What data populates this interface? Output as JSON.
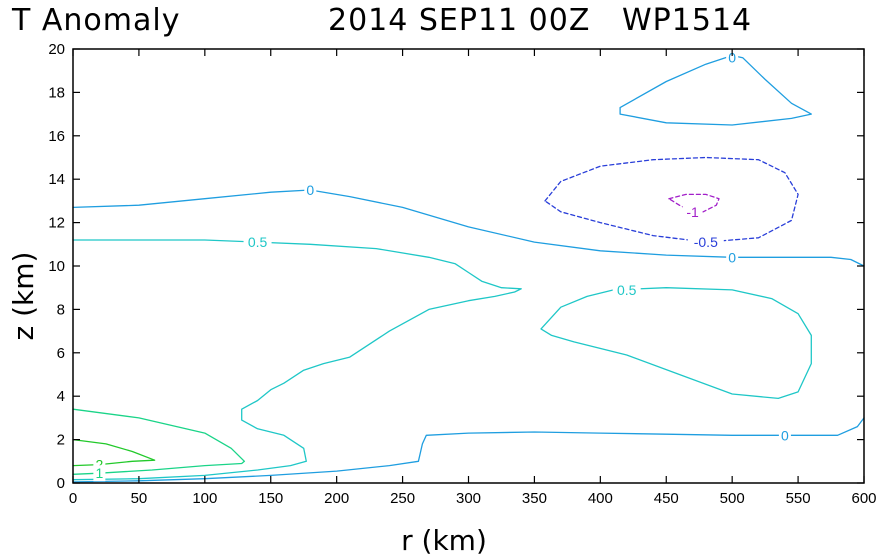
{
  "chart_data": {
    "type": "contour",
    "title_left": "T Anomaly",
    "title_right": "2014 SEP11 00Z   WP1514",
    "xlabel": "r (km)",
    "ylabel": "z (km)",
    "xlim": [
      0,
      600
    ],
    "ylim": [
      0,
      20
    ],
    "x_ticks": [
      0,
      50,
      100,
      150,
      200,
      250,
      300,
      350,
      400,
      450,
      500,
      550,
      600
    ],
    "y_ticks": [
      0,
      2,
      4,
      6,
      8,
      10,
      12,
      14,
      16,
      18,
      20
    ],
    "grid": false,
    "colors": {
      "0": "#1f9ee0",
      "0.5": "#1fc7c7",
      "1": "#1ad488",
      "2": "#22c92a",
      "-0.5": "#2a3fd9",
      "-1": "#a21fc9"
    },
    "contours": [
      {
        "level": "0",
        "color": "#1f9ee0",
        "dashed": false,
        "points": [
          [
            0,
            12.7
          ],
          [
            50,
            12.8
          ],
          [
            100,
            13.1
          ],
          [
            150,
            13.4
          ],
          [
            180,
            13.5
          ],
          [
            210,
            13.2
          ],
          [
            250,
            12.7
          ],
          [
            300,
            11.8
          ],
          [
            350,
            11.1
          ],
          [
            400,
            10.7
          ],
          [
            450,
            10.5
          ],
          [
            500,
            10.4
          ],
          [
            550,
            10.4
          ],
          [
            575,
            10.4
          ],
          [
            590,
            10.3
          ],
          [
            600,
            10.0
          ]
        ]
      },
      {
        "level": "0",
        "color": "#1f9ee0",
        "dashed": false,
        "points": [
          [
            0,
            0.05
          ],
          [
            50,
            0.1
          ],
          [
            100,
            0.2
          ],
          [
            150,
            0.35
          ],
          [
            200,
            0.55
          ],
          [
            240,
            0.8
          ],
          [
            262,
            1.0
          ],
          [
            265,
            1.8
          ],
          [
            268,
            2.2
          ],
          [
            300,
            2.3
          ],
          [
            350,
            2.35
          ],
          [
            400,
            2.3
          ],
          [
            450,
            2.25
          ],
          [
            500,
            2.2
          ],
          [
            540,
            2.2
          ],
          [
            580,
            2.2
          ],
          [
            595,
            2.6
          ],
          [
            600,
            3.0
          ]
        ]
      },
      {
        "level": "0",
        "color": "#1f9ee0",
        "dashed": false,
        "closed": true,
        "points": [
          [
            415,
            17.3
          ],
          [
            450,
            18.5
          ],
          [
            480,
            19.3
          ],
          [
            500,
            19.7
          ],
          [
            508,
            19.6
          ],
          [
            525,
            18.6
          ],
          [
            545,
            17.5
          ],
          [
            560,
            17.0
          ],
          [
            545,
            16.8
          ],
          [
            500,
            16.5
          ],
          [
            450,
            16.6
          ],
          [
            415,
            17.0
          ]
        ]
      },
      {
        "level": "0.5",
        "color": "#1fc7c7",
        "dashed": false,
        "points": [
          [
            0,
            11.2
          ],
          [
            50,
            11.2
          ],
          [
            100,
            11.2
          ],
          [
            140,
            11.1
          ],
          [
            180,
            11.0
          ],
          [
            230,
            10.8
          ],
          [
            270,
            10.4
          ],
          [
            290,
            10.1
          ],
          [
            300,
            9.7
          ],
          [
            310,
            9.3
          ],
          [
            325,
            9.0
          ],
          [
            340,
            8.95
          ],
          [
            335,
            8.8
          ],
          [
            320,
            8.6
          ],
          [
            300,
            8.4
          ],
          [
            270,
            8.0
          ],
          [
            240,
            7.0
          ],
          [
            210,
            5.8
          ],
          [
            190,
            5.5
          ],
          [
            175,
            5.2
          ],
          [
            160,
            4.6
          ],
          [
            150,
            4.3
          ],
          [
            140,
            3.8
          ],
          [
            128,
            3.4
          ],
          [
            128,
            2.9
          ],
          [
            140,
            2.5
          ],
          [
            160,
            2.2
          ],
          [
            175,
            1.6
          ],
          [
            177,
            1.0
          ],
          [
            165,
            0.8
          ],
          [
            140,
            0.6
          ],
          [
            100,
            0.35
          ],
          [
            50,
            0.2
          ],
          [
            0,
            0.15
          ]
        ]
      },
      {
        "level": "0.5",
        "color": "#1fc7c7",
        "dashed": false,
        "closed": true,
        "points": [
          [
            355,
            7.1
          ],
          [
            370,
            8.1
          ],
          [
            390,
            8.6
          ],
          [
            410,
            8.9
          ],
          [
            450,
            9.0
          ],
          [
            500,
            8.9
          ],
          [
            530,
            8.5
          ],
          [
            550,
            7.8
          ],
          [
            560,
            6.8
          ],
          [
            560,
            5.5
          ],
          [
            550,
            4.2
          ],
          [
            535,
            3.9
          ],
          [
            500,
            4.1
          ],
          [
            460,
            5.0
          ],
          [
            420,
            5.9
          ],
          [
            380,
            6.5
          ],
          [
            363,
            6.8
          ]
        ]
      },
      {
        "level": "1",
        "color": "#1ad488",
        "dashed": false,
        "points": [
          [
            0,
            3.4
          ],
          [
            50,
            3.0
          ],
          [
            100,
            2.3
          ],
          [
            120,
            1.6
          ],
          [
            130,
            1.0
          ],
          [
            128,
            0.9
          ],
          [
            100,
            0.8
          ],
          [
            60,
            0.6
          ],
          [
            20,
            0.45
          ],
          [
            0,
            0.4
          ]
        ]
      },
      {
        "level": "2",
        "color": "#22c92a",
        "dashed": false,
        "points": [
          [
            0,
            2.0
          ],
          [
            25,
            1.8
          ],
          [
            45,
            1.45
          ],
          [
            62,
            1.05
          ],
          [
            45,
            1.0
          ],
          [
            20,
            0.85
          ],
          [
            0,
            0.8
          ]
        ]
      },
      {
        "level": "-0.5",
        "color": "#2a3fd9",
        "dashed": true,
        "closed": true,
        "points": [
          [
            358,
            13.0
          ],
          [
            370,
            13.9
          ],
          [
            400,
            14.6
          ],
          [
            440,
            14.9
          ],
          [
            480,
            15.0
          ],
          [
            520,
            14.9
          ],
          [
            540,
            14.3
          ],
          [
            550,
            13.3
          ],
          [
            545,
            12.1
          ],
          [
            520,
            11.3
          ],
          [
            480,
            11.1
          ],
          [
            440,
            11.4
          ],
          [
            400,
            12.0
          ],
          [
            370,
            12.5
          ]
        ]
      },
      {
        "level": "-1",
        "color": "#a21fc9",
        "dashed": true,
        "closed": true,
        "points": [
          [
            452,
            13.1
          ],
          [
            465,
            13.3
          ],
          [
            480,
            13.3
          ],
          [
            490,
            13.1
          ],
          [
            488,
            12.8
          ],
          [
            478,
            12.5
          ],
          [
            470,
            12.5
          ],
          [
            460,
            12.8
          ]
        ]
      }
    ],
    "contour_labels": [
      {
        "text": "0",
        "x": 500,
        "y": 19.6,
        "color": "#1f9ee0"
      },
      {
        "text": "0",
        "x": 180,
        "y": 13.5,
        "color": "#1f9ee0"
      },
      {
        "text": "0",
        "x": 500,
        "y": 10.4,
        "color": "#1f9ee0"
      },
      {
        "text": "0",
        "x": 540,
        "y": 2.2,
        "color": "#1f9ee0"
      },
      {
        "text": "0.5",
        "x": 140,
        "y": 11.1,
        "color": "#1fc7c7"
      },
      {
        "text": "0.5",
        "x": 420,
        "y": 8.9,
        "color": "#1fc7c7"
      },
      {
        "text": "-0.5",
        "x": 480,
        "y": 11.1,
        "color": "#2a3fd9"
      },
      {
        "text": "-1",
        "x": 470,
        "y": 12.5,
        "color": "#a21fc9"
      },
      {
        "text": "2",
        "x": 20,
        "y": 0.85,
        "color": "#22c92a"
      },
      {
        "text": "1",
        "x": 20,
        "y": 0.45,
        "color": "#1ad488"
      }
    ]
  }
}
